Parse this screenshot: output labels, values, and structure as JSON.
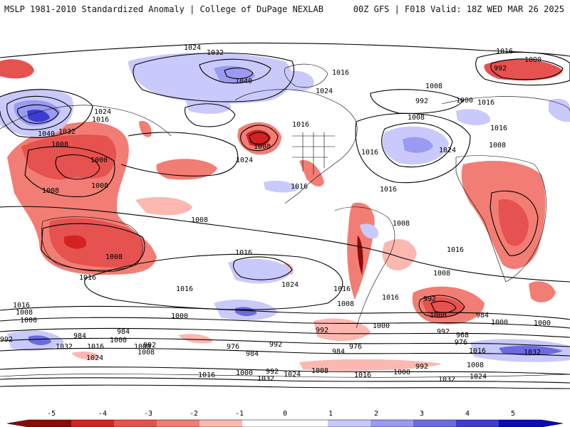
{
  "header": {
    "left": "MSLP 1981-2010 Standardized Anomaly | College of DuPage NEXLAB",
    "right": "00Z GFS | F018 Valid: 18Z WED MAR 26 2025"
  },
  "colors": {
    "neg5": "#8b0a0a",
    "neg4": "#d42222",
    "neg3": "#e6524f",
    "neg2": "#f27d74",
    "neg1": "#fbb8b0",
    "zero": "#ffffff",
    "pos1": "#c9c9fb",
    "pos2": "#9a9af2",
    "pos3": "#6b6be0",
    "pos4": "#3c3cd0",
    "pos5": "#0b0bb8"
  },
  "isobar_labels": [
    {
      "t": "1024"
    },
    {
      "t": "1032"
    },
    {
      "t": "1016"
    },
    {
      "t": "1000"
    },
    {
      "t": "992"
    },
    {
      "t": "1040"
    },
    {
      "t": "1016"
    },
    {
      "t": "1024"
    },
    {
      "t": "1008"
    },
    {
      "t": "992"
    },
    {
      "t": "1000"
    },
    {
      "t": "1016"
    },
    {
      "t": "1024"
    },
    {
      "t": "1016"
    },
    {
      "t": "1008"
    },
    {
      "t": "1040"
    },
    {
      "t": "1032"
    },
    {
      "t": "1016"
    },
    {
      "t": "1008"
    },
    {
      "t": "1000"
    },
    {
      "t": "1016"
    },
    {
      "t": "1008"
    },
    {
      "t": "1024"
    },
    {
      "t": "1008"
    },
    {
      "t": "1016"
    },
    {
      "t": "1024"
    },
    {
      "t": "1016"
    },
    {
      "t": "1016"
    },
    {
      "t": "1008"
    },
    {
      "t": "1008"
    },
    {
      "t": "1008"
    },
    {
      "t": "1008"
    },
    {
      "t": "1008"
    },
    {
      "t": "1016"
    },
    {
      "t": "1016"
    },
    {
      "t": "1016"
    },
    {
      "t": "1024"
    },
    {
      "t": "1016"
    },
    {
      "t": "1008"
    },
    {
      "t": "1016"
    },
    {
      "t": "1008"
    },
    {
      "t": "1016"
    },
    {
      "t": "1008"
    },
    {
      "t": "1000"
    },
    {
      "t": "992"
    },
    {
      "t": "984"
    },
    {
      "t": "1000"
    },
    {
      "t": "1016"
    },
    {
      "t": "992"
    },
    {
      "t": "1000"
    },
    {
      "t": "1008"
    },
    {
      "t": "992"
    },
    {
      "t": "984"
    },
    {
      "t": "968"
    },
    {
      "t": "976"
    },
    {
      "t": "1000"
    },
    {
      "t": "984"
    },
    {
      "t": "1000"
    },
    {
      "t": "992"
    },
    {
      "t": "1008"
    },
    {
      "t": "1032"
    },
    {
      "t": "1016"
    },
    {
      "t": "1024"
    },
    {
      "t": "992"
    },
    {
      "t": "1008"
    },
    {
      "t": "976"
    },
    {
      "t": "984"
    },
    {
      "t": "992"
    },
    {
      "t": "984"
    },
    {
      "t": "976"
    },
    {
      "t": "1016"
    },
    {
      "t": "1032"
    },
    {
      "t": "1016"
    },
    {
      "t": "1000"
    },
    {
      "t": "992"
    },
    {
      "t": "1032"
    },
    {
      "t": "1024"
    },
    {
      "t": "1008"
    },
    {
      "t": "1016"
    },
    {
      "t": "1000"
    },
    {
      "t": "992"
    },
    {
      "t": "1008"
    },
    {
      "t": "1032"
    },
    {
      "t": "1024"
    },
    {
      "t": "1000"
    }
  ],
  "colorbar": {
    "ticks": [
      "-5",
      "-4",
      "-3",
      "-2",
      "-1",
      "0",
      "1",
      "2",
      "3",
      "4",
      "5"
    ]
  }
}
